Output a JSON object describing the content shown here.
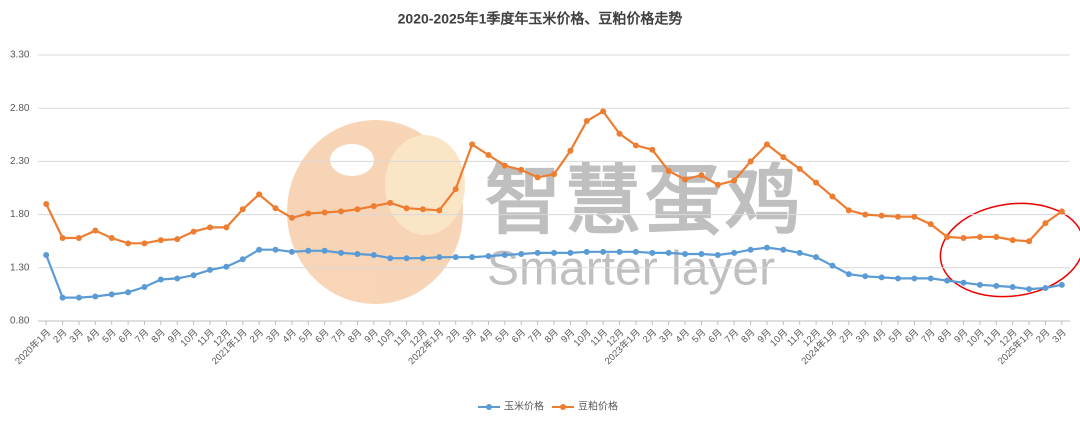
{
  "chart_data": {
    "type": "line",
    "title": "2020-2025年1季度年玉米价格、豆粕价格走势",
    "watermark": [
      "智慧蛋鸡",
      "Smarter layer"
    ],
    "categories": [
      "2020年1月",
      "2月",
      "3月",
      "4月",
      "5月",
      "6月",
      "7月",
      "8月",
      "9月",
      "10月",
      "11月",
      "12月",
      "2021年1月",
      "2月",
      "3月",
      "4月",
      "5月",
      "6月",
      "7月",
      "8月",
      "9月",
      "10月",
      "11月",
      "12月",
      "2022年1月",
      "2月",
      "3月",
      "4月",
      "5月",
      "6月",
      "7月",
      "8月",
      "9月",
      "10月",
      "11月",
      "12月",
      "2023年1月",
      "2月",
      "3月",
      "4月",
      "5月",
      "6月",
      "7月",
      "8月",
      "9月",
      "10月",
      "11月",
      "12月",
      "2024年1月",
      "2月",
      "3月",
      "4月",
      "5月",
      "6月",
      "7月",
      "8月",
      "9月",
      "10月",
      "11月",
      "12月",
      "2025年1月",
      "2月",
      "3月"
    ],
    "series": [
      {
        "name": "玉米价格",
        "color": "#5b9bd5",
        "values": [
          1.42,
          1.02,
          1.02,
          1.03,
          1.05,
          1.07,
          1.12,
          1.19,
          1.2,
          1.23,
          1.28,
          1.31,
          1.38,
          1.47,
          1.47,
          1.45,
          1.46,
          1.46,
          1.44,
          1.43,
          1.42,
          1.39,
          1.39,
          1.39,
          1.4,
          1.4,
          1.4,
          1.41,
          1.42,
          1.43,
          1.44,
          1.44,
          1.44,
          1.45,
          1.45,
          1.45,
          1.45,
          1.44,
          1.44,
          1.43,
          1.43,
          1.42,
          1.44,
          1.47,
          1.49,
          1.47,
          1.44,
          1.4,
          1.32,
          1.24,
          1.22,
          1.21,
          1.2,
          1.2,
          1.2,
          1.18,
          1.16,
          1.14,
          1.13,
          1.12,
          1.1,
          1.11,
          1.14
        ]
      },
      {
        "name": "豆粕价格",
        "color": "#ed7d31",
        "values": [
          1.9,
          1.58,
          1.58,
          1.65,
          1.58,
          1.53,
          1.53,
          1.56,
          1.57,
          1.64,
          1.68,
          1.68,
          1.85,
          1.99,
          1.86,
          1.77,
          1.81,
          1.82,
          1.83,
          1.85,
          1.88,
          1.91,
          1.86,
          1.85,
          1.84,
          2.04,
          2.46,
          2.36,
          2.26,
          2.22,
          2.15,
          2.18,
          2.4,
          2.68,
          2.77,
          2.56,
          2.45,
          2.41,
          2.21,
          2.13,
          2.17,
          2.08,
          2.12,
          2.3,
          2.46,
          2.34,
          2.23,
          2.1,
          1.97,
          1.84,
          1.8,
          1.79,
          1.78,
          1.78,
          1.71,
          1.59,
          1.58,
          1.59,
          1.59,
          1.56,
          1.55,
          1.72,
          1.83
        ]
      }
    ],
    "ylim": [
      0.8,
      3.3
    ],
    "yticks": [
      {
        "value": 0.8,
        "label": "0.80"
      },
      {
        "value": 1.3,
        "label": "1.30"
      },
      {
        "value": 1.8,
        "label": "1.80"
      },
      {
        "value": 2.3,
        "label": "2.30"
      },
      {
        "value": 2.8,
        "label": "2.80"
      },
      {
        "value": 3.3,
        "label": "3.30"
      }
    ],
    "grid": true,
    "legend": "bottom"
  }
}
